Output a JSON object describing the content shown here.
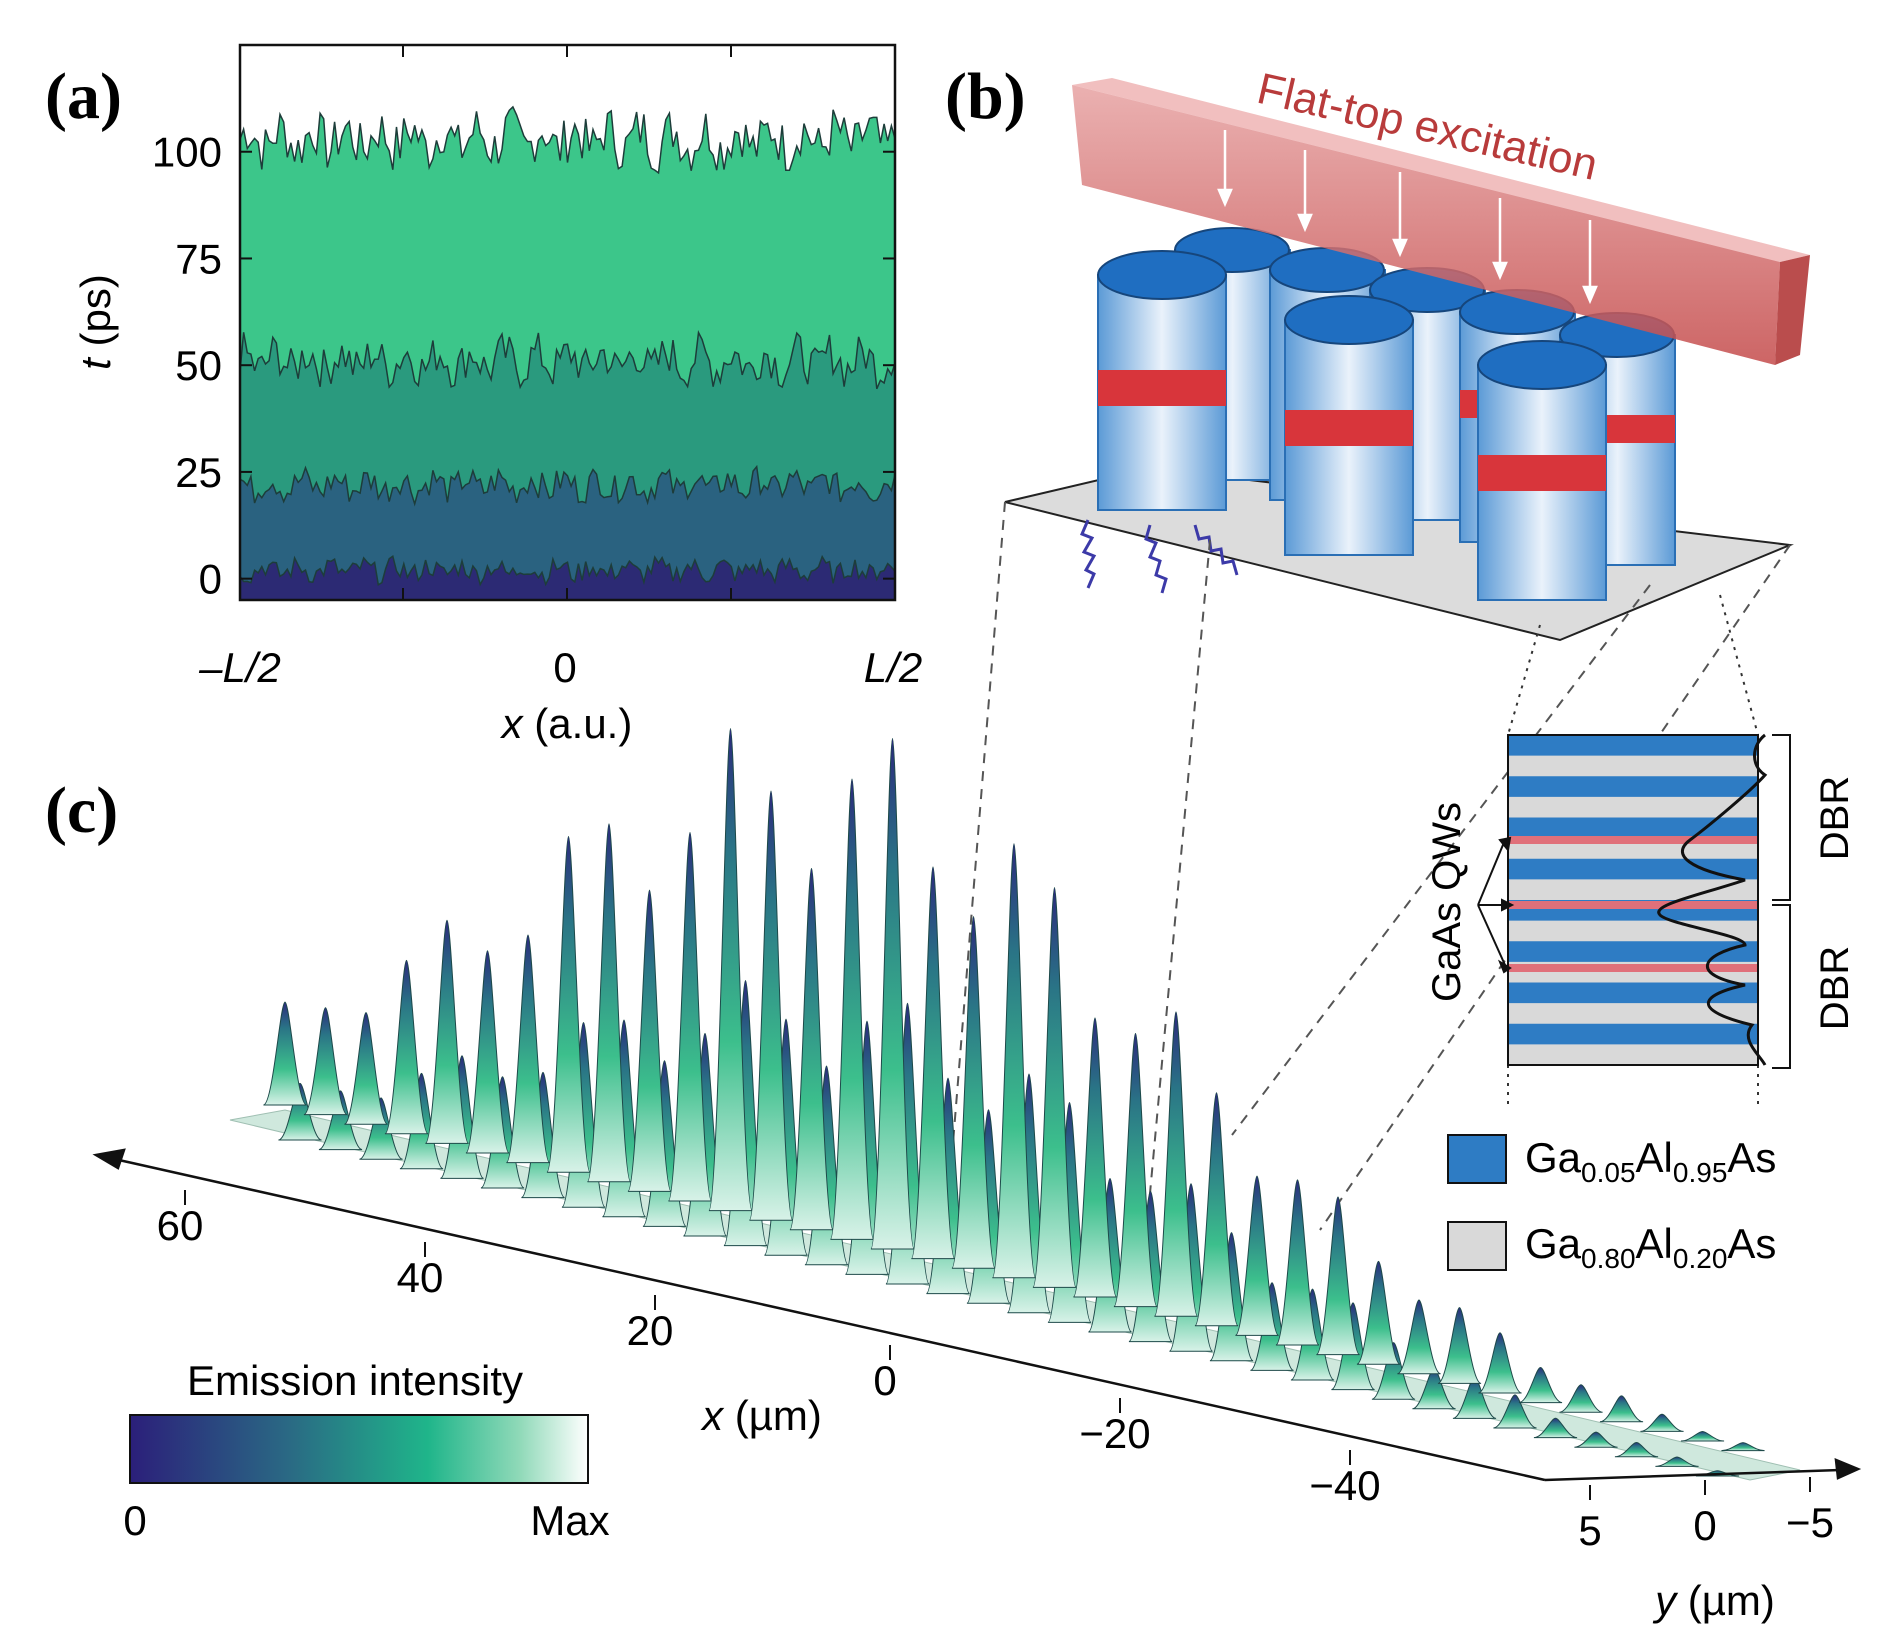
{
  "panels": {
    "a": {
      "label": "(a)",
      "chart_data": {
        "type": "area",
        "xlabel_italic": "x",
        "xlabel_rest": " (a.u.)",
        "ylabel_italic": "t",
        "ylabel_rest": " (ps)",
        "x_ticks": [
          "–L/2",
          "0",
          "L/2"
        ],
        "y_ticks": [
          0,
          25,
          50,
          75,
          100
        ],
        "ylim": [
          -5,
          125
        ],
        "bands": [
          {
            "level": 2,
            "amplitude": 2.5,
            "color": "#2c2a74"
          },
          {
            "level": 22,
            "amplitude": 3.5,
            "color": "#2a6280"
          },
          {
            "level": 51,
            "amplitude": 5,
            "color": "#2a9a7e"
          },
          {
            "level": 103,
            "amplitude": 6,
            "color": "#3cc68a"
          }
        ]
      }
    },
    "b": {
      "label": "(b)",
      "excitation_label": "Flat-top excitation",
      "layer_stack": {
        "qw_label": "GaAs QWs",
        "dbr_top": "DBR",
        "dbr_bottom": "DBR"
      },
      "legend": [
        {
          "base": "Ga",
          "sub1": "0.05",
          "mid": "Al",
          "sub2": "0.95",
          "tail": "As",
          "color": "#2e7cc4"
        },
        {
          "base": "Ga",
          "sub1": "0.80",
          "mid": "Al",
          "sub2": "0.20",
          "tail": "As",
          "color": "#d9d9d9"
        }
      ]
    },
    "c": {
      "label": "(c)",
      "x_axis_label_italic": "x",
      "x_axis_label_rest": " (µm)",
      "x_ticks": [
        "60",
        "40",
        "20",
        "0",
        "−20",
        "−40"
      ],
      "y_axis_label_italic": "y",
      "y_axis_label_rest": " (µm)",
      "y_ticks": [
        "5",
        "0",
        "−5"
      ],
      "colorbar": {
        "title": "Emission intensity",
        "min_label": "0",
        "max_label": "Max",
        "colors": [
          "#2b1f7a",
          "#2a6a84",
          "#1fb58a",
          "#8fd9b8",
          "#ffffff"
        ]
      }
    }
  }
}
